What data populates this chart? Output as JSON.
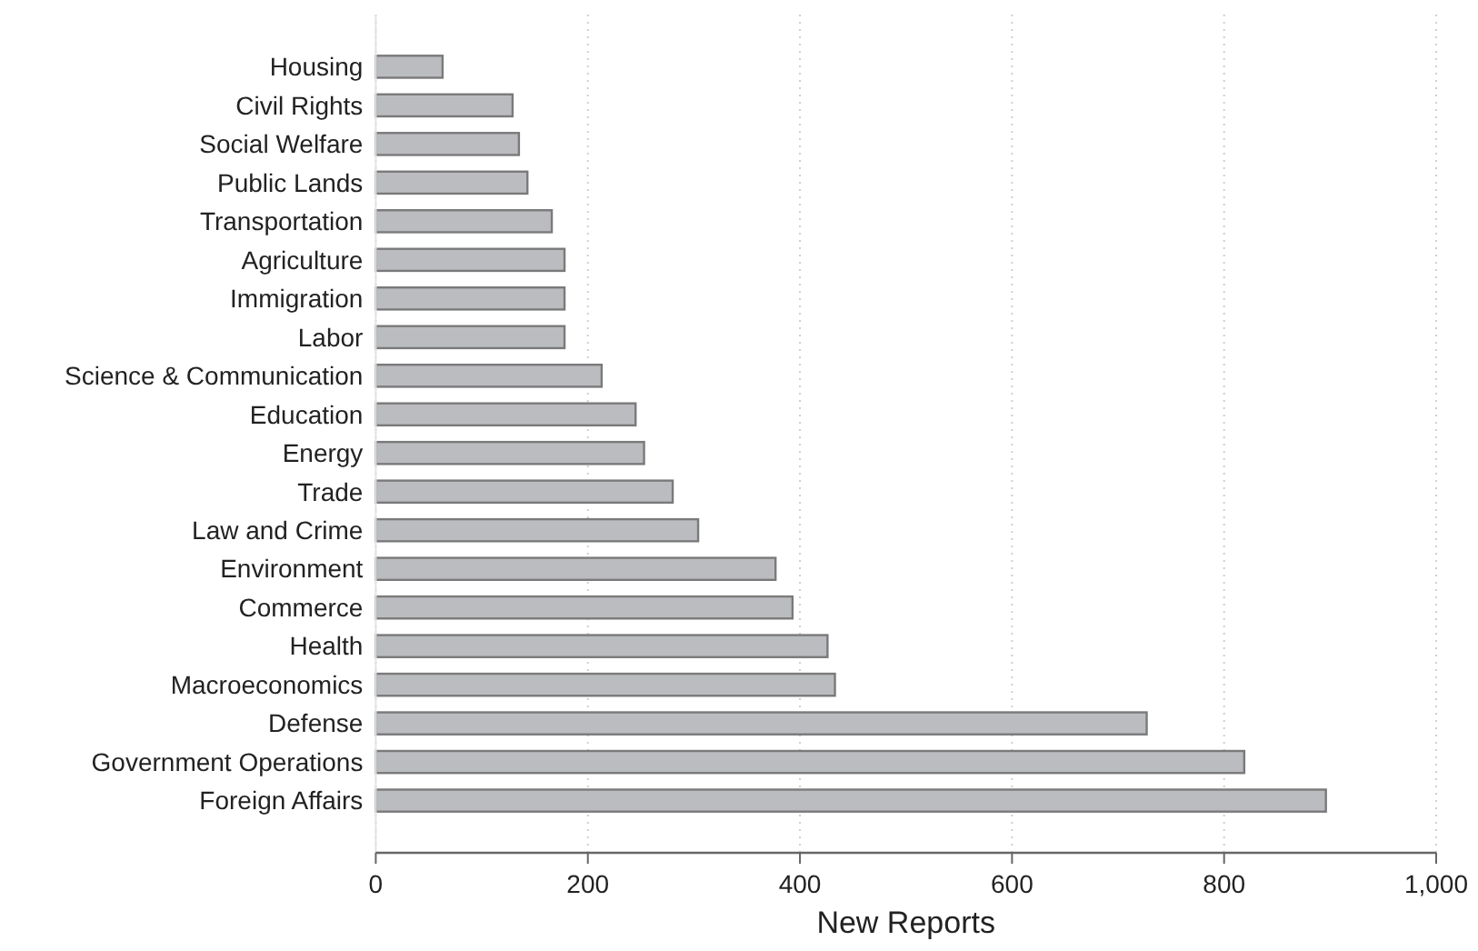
{
  "chart_data": {
    "type": "bar",
    "orientation": "horizontal",
    "xlabel": "New Reports",
    "categories": [
      "Housing",
      "Civil Rights",
      "Social Welfare",
      "Public Lands",
      "Transportation",
      "Agriculture",
      "Immigration",
      "Labor",
      "Science & Communication",
      "Education",
      "Energy",
      "Trade",
      "Law and Crime",
      "Environment",
      "Commerce",
      "Health",
      "Macroeconomics",
      "Defense",
      "Government Operations",
      "Foreign Affairs"
    ],
    "values": [
      63,
      129,
      135,
      143,
      166,
      178,
      178,
      178,
      213,
      245,
      253,
      280,
      304,
      377,
      393,
      426,
      433,
      727,
      819,
      896
    ],
    "color": "#bbbcc0",
    "xlim": [
      0,
      1000
    ],
    "xticks": [
      0,
      200,
      400,
      600,
      800,
      {
        "value": 1000,
        "label": "1,000"
      }
    ],
    "grid": "x"
  }
}
